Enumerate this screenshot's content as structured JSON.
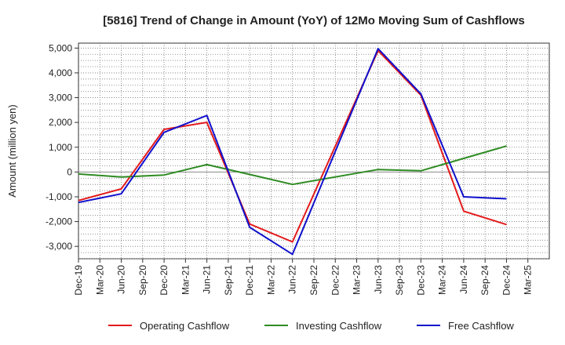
{
  "chart_data": {
    "type": "line",
    "title": "[5816]  Trend of Change in Amount (YoY) of 12Mo Moving Sum of Cashflows",
    "xlabel": "",
    "ylabel": "Amount (million yen)",
    "ylim": [
      -3500,
      5200
    ],
    "yticks": [
      -3000,
      -2000,
      -1000,
      0,
      1000,
      2000,
      3000,
      4000,
      5000
    ],
    "ytick_labels": [
      "-3,000",
      "-2,000",
      "-1,000",
      "0",
      "1,000",
      "2,000",
      "3,000",
      "4,000",
      "5,000"
    ],
    "grid": true,
    "legend_position": "bottom",
    "categories": [
      "Dec-19",
      "Mar-20",
      "Jun-20",
      "Sep-20",
      "Dec-20",
      "Mar-21",
      "Jun-21",
      "Sep-21",
      "Dec-21",
      "Mar-22",
      "Jun-22",
      "Sep-22",
      "Dec-22",
      "Mar-23",
      "Jun-23",
      "Sep-23",
      "Dec-23",
      "Mar-24",
      "Jun-24",
      "Sep-24",
      "Dec-24",
      "Mar-25"
    ],
    "series": [
      {
        "name": "Operating Cashflow",
        "color": "#e31a1c",
        "values": [
          -1150,
          null,
          -680,
          null,
          1720,
          null,
          2000,
          null,
          -2100,
          null,
          -2820,
          null,
          null,
          null,
          4900,
          null,
          3100,
          null,
          -1580,
          null,
          -2120,
          null
        ]
      },
      {
        "name": "Investing Cashflow",
        "color": "#2e8b22",
        "values": [
          -80,
          null,
          -200,
          null,
          -120,
          null,
          300,
          null,
          -100,
          null,
          -500,
          null,
          null,
          null,
          100,
          null,
          50,
          null,
          550,
          null,
          1050,
          null
        ]
      },
      {
        "name": "Free Cashflow",
        "color": "#1010cc",
        "values": [
          -1230,
          null,
          -880,
          null,
          1600,
          null,
          2280,
          null,
          -2230,
          null,
          -3320,
          null,
          null,
          null,
          4980,
          null,
          3150,
          null,
          -1000,
          null,
          -1080,
          null
        ]
      }
    ]
  }
}
